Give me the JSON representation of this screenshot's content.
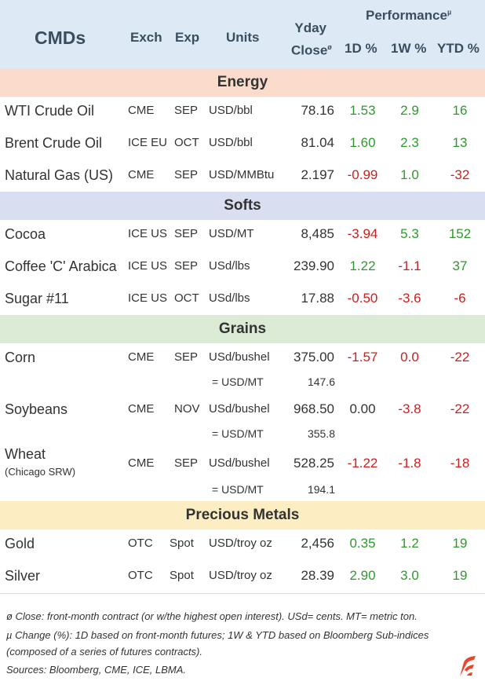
{
  "header": {
    "title": "CMDs",
    "exch": "Exch",
    "exp": "Exp",
    "units": "Units",
    "yday_line1": "Yday",
    "yday_line2": "Close",
    "yday_mark": "ø",
    "performance": "Performance",
    "perf_mark": "µ",
    "col_1d": "1D %",
    "col_1w": "1W %",
    "col_ytd": "YTD %"
  },
  "sections": {
    "energy": "Energy",
    "softs": "Softs",
    "grains": "Grains",
    "metals": "Precious Metals"
  },
  "colors": {
    "positive": "#2e9a2e",
    "negative": "#cc1f1f",
    "neutral": "#333333",
    "energy_bg": "#fbdccc",
    "softs_bg": "#d9dff0",
    "grains_bg": "#dcebd5",
    "metals_bg": "#fdedc3",
    "header_bg": "#dde9f5"
  },
  "rows": [
    {
      "name": "WTI Crude Oil",
      "exch": "CME",
      "exp": "SEP",
      "units": "USD/bbl",
      "close": "78.16",
      "d1": "1.53",
      "w1": "2.9",
      "ytd": "16",
      "d1_sign": "pos",
      "w1_sign": "pos",
      "ytd_sign": "pos"
    },
    {
      "name": "Brent Crude Oil",
      "exch": "ICE EU",
      "exp": "OCT",
      "units": "USD/bbl",
      "close": "81.04",
      "d1": "1.60",
      "w1": "2.3",
      "ytd": "13",
      "d1_sign": "pos",
      "w1_sign": "pos",
      "ytd_sign": "pos"
    },
    {
      "name": "Natural Gas (US)",
      "exch": "CME",
      "exp": "SEP",
      "units": "USD/MMBtu",
      "close": "2.197",
      "d1": "-0.99",
      "w1": "1.0",
      "ytd": "-32",
      "d1_sign": "neg",
      "w1_sign": "pos",
      "ytd_sign": "neg"
    },
    {
      "name": "Cocoa",
      "exch": "ICE US",
      "exp": "SEP",
      "units": "USD/MT",
      "close": "8,485",
      "d1": "-3.94",
      "w1": "5.3",
      "ytd": "152",
      "d1_sign": "neg",
      "w1_sign": "pos",
      "ytd_sign": "pos"
    },
    {
      "name": "Coffee 'C' Arabica",
      "exch": "ICE US",
      "exp": "SEP",
      "units": "USd/lbs",
      "close": "239.90",
      "d1": "1.22",
      "w1": "-1.1",
      "ytd": "37",
      "d1_sign": "pos",
      "w1_sign": "neg",
      "ytd_sign": "pos"
    },
    {
      "name": "Sugar #11",
      "exch": "ICE US",
      "exp": "OCT",
      "units": "USd/lbs",
      "close": "17.88",
      "d1": "-0.50",
      "w1": "-3.6",
      "ytd": "-6",
      "d1_sign": "neg",
      "w1_sign": "neg",
      "ytd_sign": "neg"
    },
    {
      "name": "Corn",
      "exch": "CME",
      "exp": "SEP",
      "units": "USd/bushel",
      "close": "375.00",
      "d1": "-1.57",
      "w1": "0.0",
      "ytd": "-22",
      "d1_sign": "neg",
      "w1_sign": "neg",
      "ytd_sign": "neg",
      "conv_units": "= USD/MT",
      "conv_value": "147.6"
    },
    {
      "name": "Soybeans",
      "exch": "CME",
      "exp": "NOV",
      "units": "USd/bushel",
      "close": "968.50",
      "d1": "0.00",
      "w1": "-3.8",
      "ytd": "-22",
      "d1_sign": "zero",
      "w1_sign": "neg",
      "ytd_sign": "neg",
      "conv_units": "= USD/MT",
      "conv_value": "355.8"
    },
    {
      "name": "Wheat",
      "subname": "(Chicago SRW)",
      "exch": "CME",
      "exp": "SEP",
      "units": "USd/bushel",
      "close": "528.25",
      "d1": "-1.22",
      "w1": "-1.8",
      "ytd": "-18",
      "d1_sign": "neg",
      "w1_sign": "neg",
      "ytd_sign": "neg",
      "conv_units": "= USD/MT",
      "conv_value": "194.1"
    },
    {
      "name": "Gold",
      "exch": "OTC",
      "exp": "Spot",
      "units": "USD/troy oz",
      "close": "2,456",
      "d1": "0.35",
      "w1": "1.2",
      "ytd": "19",
      "d1_sign": "pos",
      "w1_sign": "pos",
      "ytd_sign": "pos"
    },
    {
      "name": "Silver",
      "exch": "OTC",
      "exp": "Spot",
      "units": "USD/troy oz",
      "close": "28.39",
      "d1": "2.90",
      "w1": "3.0",
      "ytd": "19",
      "d1_sign": "pos",
      "w1_sign": "pos",
      "ytd_sign": "pos"
    }
  ],
  "footnotes": {
    "line1": "ø Close: front-month contract (or w/the highest open interest). USd= cents. MT= metric ton.",
    "line2": "µ Change (%): 1D based on front-month futures; 1W & YTD based on Bloomberg Sub-indices",
    "line3": "(composed of a series of futures contracts).",
    "line4": "Sources: Bloomberg, CME, ICE, LBMA."
  },
  "logo_icon": "brand-logo-icon"
}
